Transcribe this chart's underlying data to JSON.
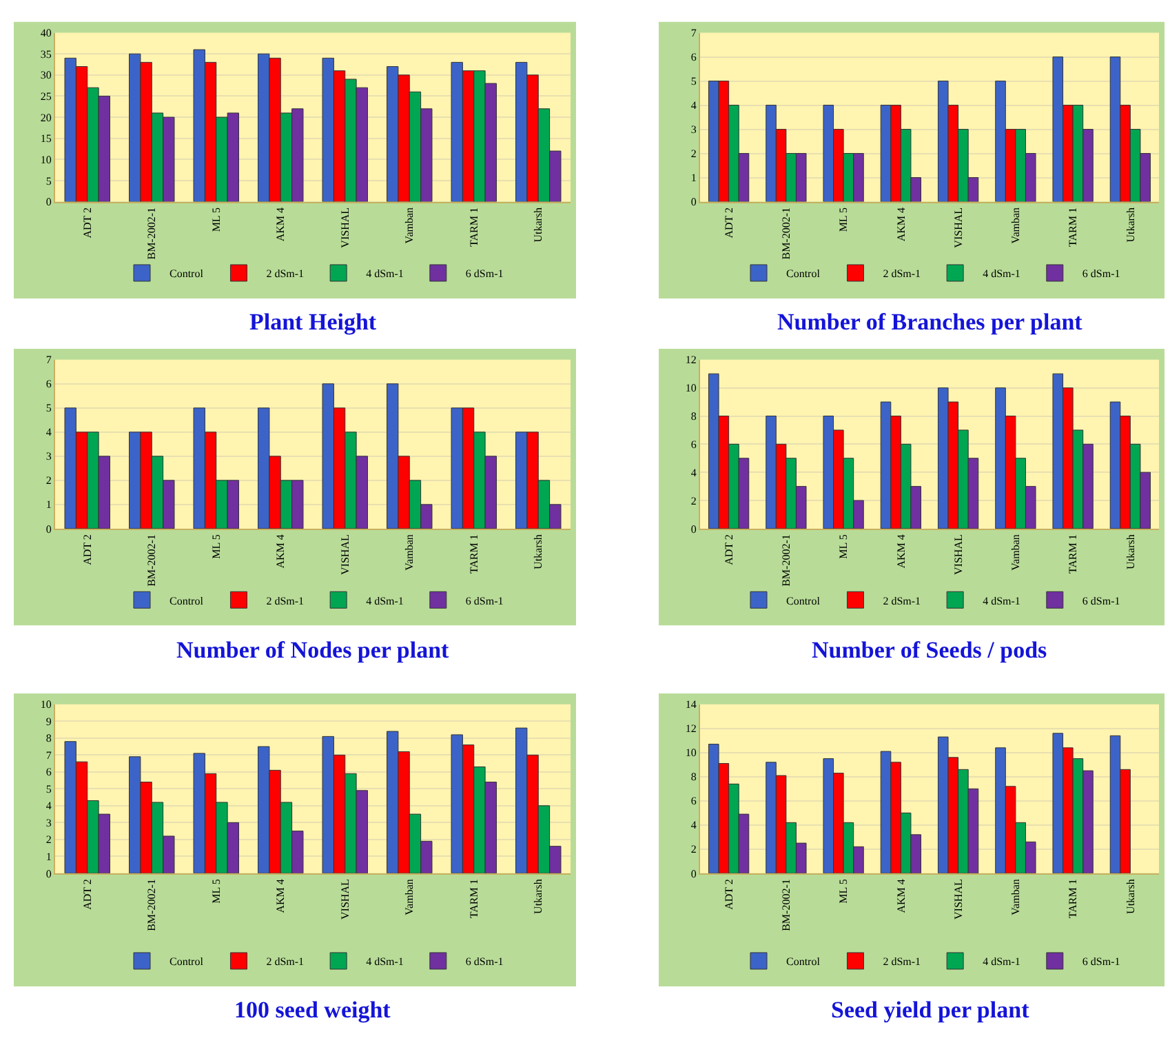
{
  "chart_data": [
    {
      "type": "bar",
      "title": "Plant Height",
      "categories": [
        "ADT 2",
        "BM-2002-1",
        "ML 5",
        "AKM 4",
        "VISHAL",
        "Vamban",
        "TARM 1",
        "Utkarsh"
      ],
      "ylim": [
        0,
        40
      ],
      "yticks": [
        0,
        5,
        10,
        15,
        20,
        25,
        30,
        35,
        40
      ],
      "grid": "y",
      "legend": "bottom",
      "series": [
        {
          "name": "Control",
          "color": "#3c64c8",
          "values": [
            34,
            35,
            36,
            35,
            34,
            32,
            33,
            33
          ]
        },
        {
          "name": "2 dSm-1",
          "color": "#ff0000",
          "values": [
            32,
            33,
            33,
            34,
            31,
            30,
            31,
            30
          ]
        },
        {
          "name": "4 dSm-1",
          "color": "#00a651",
          "values": [
            27,
            21,
            20,
            21,
            29,
            26,
            31,
            22
          ]
        },
        {
          "name": "6 dSm-1",
          "color": "#7030a0",
          "values": [
            25,
            20,
            21,
            22,
            27,
            22,
            28,
            12
          ]
        }
      ]
    },
    {
      "type": "bar",
      "title": "Number of Branches per plant",
      "categories": [
        "ADT 2",
        "BM-2002-1",
        "ML 5",
        "AKM 4",
        "VISHAL",
        "Vamban",
        "TARM 1",
        "Utkarsh"
      ],
      "ylim": [
        0,
        7
      ],
      "yticks": [
        0,
        1,
        2,
        3,
        4,
        5,
        6,
        7
      ],
      "grid": "y",
      "legend": "bottom",
      "series": [
        {
          "name": "Control",
          "color": "#3c64c8",
          "values": [
            5,
            4,
            4,
            4,
            5,
            5,
            6,
            6
          ]
        },
        {
          "name": "2 dSm-1",
          "color": "#ff0000",
          "values": [
            5,
            3,
            3,
            4,
            4,
            3,
            4,
            4
          ]
        },
        {
          "name": "4 dSm-1",
          "color": "#00a651",
          "values": [
            4,
            2,
            2,
            3,
            3,
            3,
            4,
            3
          ]
        },
        {
          "name": "6 dSm-1",
          "color": "#7030a0",
          "values": [
            2,
            2,
            2,
            1,
            1,
            2,
            3,
            2
          ]
        }
      ]
    },
    {
      "type": "bar",
      "title": "Number of Nodes per plant",
      "categories": [
        "ADT 2",
        "BM-2002-1",
        "ML 5",
        "AKM 4",
        "VISHAL",
        "Vamban",
        "TARM 1",
        "Utkarsh"
      ],
      "ylim": [
        0,
        7
      ],
      "yticks": [
        0,
        1,
        2,
        3,
        4,
        5,
        6,
        7
      ],
      "grid": "y",
      "legend": "bottom",
      "series": [
        {
          "name": "Control",
          "color": "#3c64c8",
          "values": [
            5,
            4,
            5,
            5,
            6,
            6,
            5,
            4
          ]
        },
        {
          "name": "2 dSm-1",
          "color": "#ff0000",
          "values": [
            4,
            4,
            4,
            3,
            5,
            3,
            5,
            4
          ]
        },
        {
          "name": "4 dSm-1",
          "color": "#00a651",
          "values": [
            4,
            3,
            2,
            2,
            4,
            2,
            4,
            2
          ]
        },
        {
          "name": "6 dSm-1",
          "color": "#7030a0",
          "values": [
            3,
            2,
            2,
            2,
            3,
            1,
            3,
            1
          ]
        }
      ]
    },
    {
      "type": "bar",
      "title": "Number of Seeds / pods",
      "categories": [
        "ADT 2",
        "BM-2002-1",
        "ML 5",
        "AKM 4",
        "VISHAL",
        "Vamban",
        "TARM 1",
        "Utkarsh"
      ],
      "ylim": [
        0,
        12
      ],
      "yticks": [
        0,
        2,
        4,
        6,
        8,
        10,
        12
      ],
      "grid": "y",
      "legend": "bottom",
      "series": [
        {
          "name": "Control",
          "color": "#3c64c8",
          "values": [
            11,
            8,
            8,
            9,
            10,
            10,
            11,
            9
          ]
        },
        {
          "name": "2 dSm-1",
          "color": "#ff0000",
          "values": [
            8,
            6,
            7,
            8,
            9,
            8,
            10,
            8
          ]
        },
        {
          "name": "4 dSm-1",
          "color": "#00a651",
          "values": [
            6,
            5,
            5,
            6,
            7,
            5,
            7,
            6
          ]
        },
        {
          "name": "6 dSm-1",
          "color": "#7030a0",
          "values": [
            5,
            3,
            2,
            3,
            5,
            3,
            6,
            4
          ]
        }
      ]
    },
    {
      "type": "bar",
      "title": "100 seed weight",
      "categories": [
        "ADT 2",
        "BM-2002-1",
        "ML 5",
        "AKM 4",
        "VISHAL",
        "Vamban",
        "TARM 1",
        "Utkarsh"
      ],
      "ylim": [
        0,
        10
      ],
      "yticks": [
        0,
        1,
        2,
        3,
        4,
        5,
        6,
        7,
        8,
        9,
        10
      ],
      "grid": "y",
      "legend": "bottom",
      "series": [
        {
          "name": "Control",
          "color": "#3c64c8",
          "values": [
            7.8,
            6.9,
            7.1,
            7.5,
            8.1,
            8.4,
            8.2,
            8.6
          ]
        },
        {
          "name": "2 dSm-1",
          "color": "#ff0000",
          "values": [
            6.6,
            5.4,
            5.9,
            6.1,
            7.0,
            7.2,
            7.6,
            7.0
          ]
        },
        {
          "name": "4 dSm-1",
          "color": "#00a651",
          "values": [
            4.3,
            4.2,
            4.2,
            4.2,
            5.9,
            3.5,
            6.3,
            4.0
          ]
        },
        {
          "name": "6 dSm-1",
          "color": "#7030a0",
          "values": [
            3.5,
            2.2,
            3.0,
            2.5,
            4.9,
            1.9,
            5.4,
            1.6
          ]
        }
      ]
    },
    {
      "type": "bar",
      "title": "Seed yield per plant",
      "categories": [
        "ADT 2",
        "BM-2002-1",
        "ML 5",
        "AKM 4",
        "VISHAL",
        "Vamban",
        "TARM 1",
        "Utkarsh"
      ],
      "ylim": [
        0,
        14
      ],
      "yticks": [
        0,
        2,
        4,
        6,
        8,
        10,
        12,
        14
      ],
      "grid": "y",
      "legend": "bottom",
      "series": [
        {
          "name": "Control",
          "color": "#3c64c8",
          "values": [
            10.7,
            9.2,
            9.5,
            10.1,
            11.3,
            10.4,
            11.6,
            11.4
          ]
        },
        {
          "name": "2 dSm-1",
          "color": "#ff0000",
          "values": [
            9.1,
            8.1,
            8.3,
            9.2,
            9.6,
            7.2,
            10.4,
            8.6
          ]
        },
        {
          "name": "4 dSm-1",
          "color": "#00a651",
          "values": [
            7.4,
            4.2,
            4.2,
            5.0,
            8.6,
            4.2,
            9.5,
            null
          ]
        },
        {
          "name": "6 dSm-1",
          "color": "#7030a0",
          "values": [
            4.9,
            2.5,
            2.2,
            3.2,
            7.0,
            2.6,
            8.5,
            null
          ]
        }
      ]
    }
  ]
}
